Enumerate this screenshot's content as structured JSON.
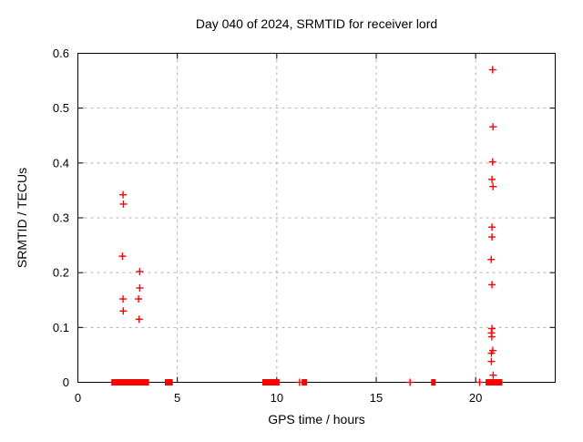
{
  "title": "Day 040 of 2024, SRMTID for receiver lord",
  "colors": {
    "marker": "#ff0000",
    "grid": "#b0b0b0",
    "axis": "#000000",
    "background": "#ffffff",
    "text": "#000000"
  },
  "chart_data": {
    "type": "scatter",
    "title": "Day 040 of 2024, SRMTID for receiver lord",
    "xlabel": "GPS time / hours",
    "ylabel": "SRMTID / TECUs",
    "xlim": [
      0,
      24
    ],
    "ylim": [
      0,
      0.6
    ],
    "x_ticks": [
      0,
      5,
      10,
      15,
      20
    ],
    "y_ticks": [
      0,
      0.1,
      0.2,
      0.3,
      0.4,
      0.5,
      0.6
    ],
    "grid": true,
    "legend_position": "none",
    "marker": "plus",
    "series": [
      {
        "name": "SRMTID",
        "color": "#ff0000",
        "points": [
          [
            2.27,
            0.342
          ],
          [
            2.29,
            0.325
          ],
          [
            2.24,
            0.23
          ],
          [
            3.11,
            0.202
          ],
          [
            3.11,
            0.172
          ],
          [
            2.27,
            0.152
          ],
          [
            3.05,
            0.152
          ],
          [
            2.28,
            0.13
          ],
          [
            3.08,
            0.115
          ],
          [
            20.85,
            0.57
          ],
          [
            20.87,
            0.466
          ],
          [
            20.85,
            0.402
          ],
          [
            20.82,
            0.37
          ],
          [
            20.87,
            0.357
          ],
          [
            20.82,
            0.283
          ],
          [
            20.82,
            0.265
          ],
          [
            20.78,
            0.224
          ],
          [
            20.82,
            0.178
          ],
          [
            20.82,
            0.098
          ],
          [
            20.79,
            0.09
          ],
          [
            20.81,
            0.083
          ],
          [
            20.86,
            0.058
          ],
          [
            20.79,
            0.053
          ],
          [
            20.79,
            0.038
          ],
          [
            20.88,
            0.013
          ]
        ]
      }
    ],
    "zero_value_runs": [
      {
        "start": 1.68,
        "end": 3.58
      },
      {
        "start": 4.37,
        "end": 4.77
      },
      {
        "start": 9.27,
        "end": 10.14
      },
      {
        "start": 11.25,
        "end": 11.52
      },
      {
        "start": 17.76,
        "end": 17.99
      },
      {
        "start": 20.5,
        "end": 21.34
      }
    ],
    "zero_value_singles": [
      11.15,
      16.7,
      20.2
    ]
  }
}
